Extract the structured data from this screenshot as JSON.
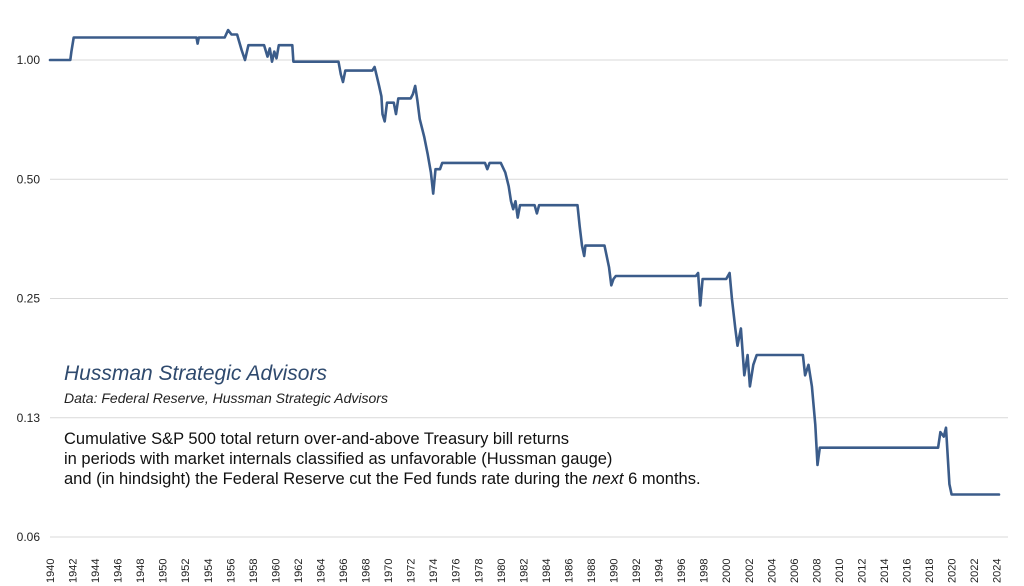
{
  "chart_data": {
    "type": "line",
    "title": "",
    "xlabel": "",
    "ylabel": "",
    "yscale": "log",
    "ylim": [
      0.06,
      1.45
    ],
    "xlim": [
      1940,
      2025
    ],
    "yticks": [
      {
        "value": 1.0,
        "label": "1.00"
      },
      {
        "value": 0.5,
        "label": "0.50"
      },
      {
        "value": 0.25,
        "label": "0.25"
      },
      {
        "value": 0.125,
        "label": "0.13"
      },
      {
        "value": 0.0625,
        "label": "0.06"
      }
    ],
    "xticks": [
      "1940",
      "1942",
      "1944",
      "1946",
      "1948",
      "1950",
      "1952",
      "1954",
      "1956",
      "1958",
      "1960",
      "1962",
      "1964",
      "1966",
      "1968",
      "1970",
      "1972",
      "1974",
      "1976",
      "1978",
      "1980",
      "1982",
      "1984",
      "1986",
      "1988",
      "1990",
      "1992",
      "1994",
      "1996",
      "1998",
      "2000",
      "2002",
      "2004",
      "2006",
      "2008",
      "2010",
      "2012",
      "2014",
      "2016",
      "2018",
      "2020",
      "2022",
      "2024"
    ],
    "grid": true,
    "legend": "none",
    "series": [
      {
        "color": "#3b5c8a",
        "points": [
          [
            1940.0,
            1.0
          ],
          [
            1941.8,
            1.0
          ],
          [
            1941.9,
            1.05
          ],
          [
            1942.1,
            1.14
          ],
          [
            1953.0,
            1.14
          ],
          [
            1953.1,
            1.1
          ],
          [
            1953.2,
            1.14
          ],
          [
            1955.5,
            1.14
          ],
          [
            1955.8,
            1.19
          ],
          [
            1956.1,
            1.16
          ],
          [
            1956.6,
            1.16
          ],
          [
            1957.0,
            1.06
          ],
          [
            1957.3,
            1.0
          ],
          [
            1957.6,
            1.09
          ],
          [
            1959.0,
            1.09
          ],
          [
            1959.3,
            1.02
          ],
          [
            1959.5,
            1.07
          ],
          [
            1959.7,
            0.99
          ],
          [
            1959.9,
            1.05
          ],
          [
            1960.1,
            1.01
          ],
          [
            1960.3,
            1.09
          ],
          [
            1961.5,
            1.09
          ],
          [
            1961.6,
            0.99
          ],
          [
            1965.6,
            0.99
          ],
          [
            1965.8,
            0.92
          ],
          [
            1966.0,
            0.88
          ],
          [
            1966.2,
            0.94
          ],
          [
            1968.6,
            0.94
          ],
          [
            1968.8,
            0.96
          ],
          [
            1969.0,
            0.91
          ],
          [
            1969.2,
            0.86
          ],
          [
            1969.4,
            0.81
          ],
          [
            1969.5,
            0.73
          ],
          [
            1969.7,
            0.7
          ],
          [
            1969.9,
            0.78
          ],
          [
            1970.5,
            0.78
          ],
          [
            1970.7,
            0.73
          ],
          [
            1970.9,
            0.8
          ],
          [
            1972.0,
            0.8
          ],
          [
            1972.2,
            0.82
          ],
          [
            1972.4,
            0.86
          ],
          [
            1972.6,
            0.79
          ],
          [
            1972.8,
            0.71
          ],
          [
            1973.2,
            0.64
          ],
          [
            1973.5,
            0.58
          ],
          [
            1973.8,
            0.52
          ],
          [
            1974.0,
            0.46
          ],
          [
            1974.2,
            0.53
          ],
          [
            1974.6,
            0.53
          ],
          [
            1974.8,
            0.55
          ],
          [
            1978.6,
            0.55
          ],
          [
            1978.8,
            0.53
          ],
          [
            1979.0,
            0.55
          ],
          [
            1980.0,
            0.55
          ],
          [
            1980.4,
            0.52
          ],
          [
            1980.7,
            0.48
          ],
          [
            1980.9,
            0.44
          ],
          [
            1981.1,
            0.42
          ],
          [
            1981.3,
            0.44
          ],
          [
            1981.5,
            0.4
          ],
          [
            1981.7,
            0.43
          ],
          [
            1983.0,
            0.43
          ],
          [
            1983.2,
            0.41
          ],
          [
            1983.4,
            0.43
          ],
          [
            1986.8,
            0.43
          ],
          [
            1987.0,
            0.38
          ],
          [
            1987.2,
            0.34
          ],
          [
            1987.4,
            0.32
          ],
          [
            1987.5,
            0.34
          ],
          [
            1989.2,
            0.34
          ],
          [
            1989.6,
            0.3
          ],
          [
            1989.8,
            0.27
          ],
          [
            1990.0,
            0.28
          ],
          [
            1990.2,
            0.285
          ],
          [
            1997.3,
            0.285
          ],
          [
            1997.5,
            0.29
          ],
          [
            1997.7,
            0.24
          ],
          [
            1997.9,
            0.28
          ],
          [
            2000.0,
            0.28
          ],
          [
            2000.3,
            0.29
          ],
          [
            2000.5,
            0.25
          ],
          [
            2000.8,
            0.21
          ],
          [
            2001.0,
            0.19
          ],
          [
            2001.3,
            0.21
          ],
          [
            2001.6,
            0.16
          ],
          [
            2001.9,
            0.18
          ],
          [
            2002.1,
            0.15
          ],
          [
            2002.4,
            0.17
          ],
          [
            2002.7,
            0.18
          ],
          [
            2006.8,
            0.18
          ],
          [
            2007.0,
            0.16
          ],
          [
            2007.3,
            0.17
          ],
          [
            2007.6,
            0.15
          ],
          [
            2007.9,
            0.12
          ],
          [
            2008.1,
            0.095
          ],
          [
            2008.3,
            0.105
          ],
          [
            2018.8,
            0.105
          ],
          [
            2019.0,
            0.115
          ],
          [
            2019.3,
            0.112
          ],
          [
            2019.5,
            0.118
          ],
          [
            2019.8,
            0.085
          ],
          [
            2020.0,
            0.08
          ],
          [
            2024.2,
            0.08
          ]
        ]
      }
    ]
  },
  "annotations": {
    "brand": "Hussman Strategic Advisors",
    "source": "Data: Federal Reserve, Hussman Strategic Advisors",
    "desc_line1": "Cumulative S&P 500 total return over-and-above Treasury bill returns",
    "desc_line2": "in periods with market internals classified as unfavorable (Hussman gauge)",
    "desc_line3_pre": "and (in hindsight) the Federal Reserve cut the Fed funds rate during the ",
    "desc_line3_em": "next",
    "desc_line3_post": " 6 months."
  }
}
